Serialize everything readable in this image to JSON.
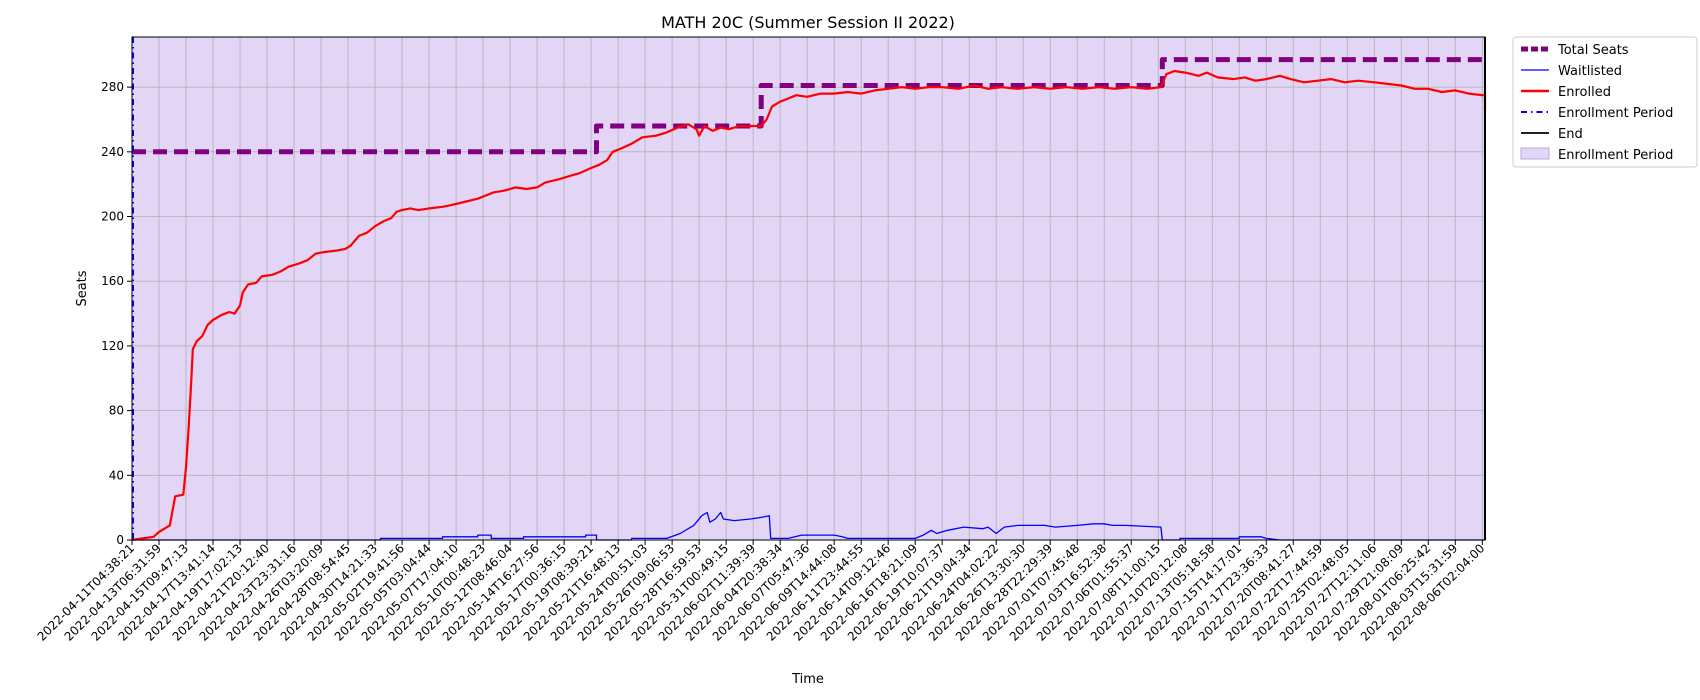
{
  "chart_data": {
    "type": "line",
    "title": "MATH 20C (Summer Session II 2022)",
    "xlabel": "Time",
    "ylabel": "Seats",
    "ylim": [
      0,
      311
    ],
    "y_ticks": [
      0,
      40,
      80,
      120,
      160,
      200,
      240,
      280
    ],
    "x_tick_labels": [
      "2022-04-11T04:38:21",
      "2022-04-13T06:31:59",
      "2022-04-15T09:47:13",
      "2022-04-17T13:41:14",
      "2022-04-19T17:02:13",
      "2022-04-21T20:12:40",
      "2022-04-23T23:31:16",
      "2022-04-26T03:20:09",
      "2022-04-28T08:54:45",
      "2022-04-30T14:21:33",
      "2022-05-02T19:41:56",
      "2022-05-05T03:04:44",
      "2022-05-07T17:04:10",
      "2022-05-10T00:48:23",
      "2022-05-12T08:46:04",
      "2022-05-14T16:27:56",
      "2022-05-17T00:36:15",
      "2022-05-19T08:39:21",
      "2022-05-21T16:48:13",
      "2022-05-24T00:51:03",
      "2022-05-26T09:06:53",
      "2022-05-28T16:59:53",
      "2022-05-31T00:49:15",
      "2022-06-02T11:39:39",
      "2022-06-04T20:38:34",
      "2022-06-07T05:47:36",
      "2022-06-09T14:44:08",
      "2022-06-11T23:44:55",
      "2022-06-14T09:12:46",
      "2022-06-16T18:21:09",
      "2022-06-19T10:07:37",
      "2022-06-21T19:04:34",
      "2022-06-24T04:02:22",
      "2022-06-26T13:30:30",
      "2022-06-28T22:29:39",
      "2022-07-01T07:45:48",
      "2022-07-03T16:52:38",
      "2022-07-06T01:55:37",
      "2022-07-08T11:00:15",
      "2022-07-10T20:12:08",
      "2022-07-13T05:18:58",
      "2022-07-15T14:17:01",
      "2022-07-17T23:36:33",
      "2022-07-20T08:41:27",
      "2022-07-22T17:44:59",
      "2022-07-25T02:48:05",
      "2022-07-27T12:11:06",
      "2022-07-29T21:08:09",
      "2022-08-01T06:25:42",
      "2022-08-03T15:31:59",
      "2022-08-06T02:04:00"
    ],
    "legend_position": "outside-right-top",
    "grid": true,
    "colors": {
      "total_seats": "#800080",
      "waitlisted": "#0000ff",
      "enrolled": "#ff0000",
      "enrollment_period_line": "#0000ff",
      "end_line": "#000000",
      "enrollment_period_fill": "#e2d5f6"
    },
    "series": [
      {
        "name": "Total Seats",
        "style": "dashed",
        "points": [
          [
            0,
            240
          ],
          [
            17.2,
            240
          ],
          [
            17.2,
            256
          ],
          [
            23.3,
            256
          ],
          [
            23.3,
            281
          ],
          [
            38.15,
            281
          ],
          [
            38.15,
            297
          ],
          [
            50.5,
            297
          ]
        ]
      },
      {
        "name": "Waitlisted",
        "style": "solid",
        "points": [
          [
            0,
            0
          ],
          [
            9.2,
            0
          ],
          [
            9.2,
            1
          ],
          [
            11.5,
            1
          ],
          [
            11.5,
            2
          ],
          [
            12.8,
            2
          ],
          [
            12.8,
            3
          ],
          [
            13.3,
            3
          ],
          [
            13.3,
            1
          ],
          [
            14.5,
            1
          ],
          [
            14.5,
            2
          ],
          [
            16.8,
            2
          ],
          [
            16.8,
            3
          ],
          [
            17.2,
            3
          ],
          [
            17.2,
            0
          ],
          [
            18.5,
            0
          ],
          [
            18.5,
            1
          ],
          [
            19.8,
            1
          ],
          [
            20.3,
            4
          ],
          [
            20.8,
            9
          ],
          [
            21.1,
            15
          ],
          [
            21.3,
            17
          ],
          [
            21.4,
            11
          ],
          [
            21.6,
            13
          ],
          [
            21.8,
            17
          ],
          [
            21.9,
            13
          ],
          [
            22.3,
            12
          ],
          [
            22.9,
            13
          ],
          [
            23.3,
            14
          ],
          [
            23.6,
            15
          ],
          [
            23.65,
            1
          ],
          [
            24.3,
            1
          ],
          [
            24.8,
            3
          ],
          [
            26.0,
            3
          ],
          [
            26.3,
            2
          ],
          [
            26.5,
            1
          ],
          [
            27.2,
            1
          ],
          [
            29.0,
            1
          ],
          [
            29.3,
            3
          ],
          [
            29.6,
            6
          ],
          [
            29.8,
            4
          ],
          [
            30.2,
            6
          ],
          [
            30.8,
            8
          ],
          [
            31.5,
            7
          ],
          [
            31.7,
            8
          ],
          [
            32.0,
            4
          ],
          [
            32.3,
            8
          ],
          [
            32.8,
            9
          ],
          [
            33.8,
            9
          ],
          [
            34.2,
            8
          ],
          [
            35.0,
            9
          ],
          [
            35.6,
            10
          ],
          [
            36.0,
            10
          ],
          [
            36.3,
            9
          ],
          [
            36.8,
            9
          ],
          [
            38.1,
            8
          ],
          [
            38.15,
            0
          ],
          [
            38.8,
            0
          ],
          [
            38.8,
            1
          ],
          [
            41.0,
            1
          ],
          [
            41.0,
            2
          ],
          [
            41.8,
            2
          ],
          [
            42.0,
            1
          ],
          [
            42.5,
            0
          ],
          [
            50.5,
            0
          ]
        ]
      },
      {
        "name": "Enrolled",
        "style": "solid",
        "points": [
          [
            0,
            0
          ],
          [
            0.4,
            1
          ],
          [
            0.8,
            2
          ],
          [
            1.0,
            5
          ],
          [
            1.2,
            7
          ],
          [
            1.4,
            9
          ],
          [
            1.5,
            18
          ],
          [
            1.6,
            27
          ],
          [
            1.9,
            28
          ],
          [
            2.0,
            45
          ],
          [
            2.1,
            70
          ],
          [
            2.2,
            100
          ],
          [
            2.25,
            118
          ],
          [
            2.4,
            123
          ],
          [
            2.6,
            126
          ],
          [
            2.8,
            133
          ],
          [
            3.0,
            136
          ],
          [
            3.3,
            139
          ],
          [
            3.6,
            141
          ],
          [
            3.8,
            140
          ],
          [
            4.0,
            145
          ],
          [
            4.1,
            153
          ],
          [
            4.3,
            158
          ],
          [
            4.6,
            159
          ],
          [
            4.8,
            163
          ],
          [
            5.2,
            164
          ],
          [
            5.5,
            166
          ],
          [
            5.8,
            169
          ],
          [
            6.2,
            171
          ],
          [
            6.5,
            173
          ],
          [
            6.8,
            177
          ],
          [
            7.1,
            178
          ],
          [
            7.6,
            179
          ],
          [
            7.9,
            180
          ],
          [
            8.1,
            182
          ],
          [
            8.4,
            188
          ],
          [
            8.7,
            190
          ],
          [
            9.0,
            194
          ],
          [
            9.3,
            197
          ],
          [
            9.6,
            199
          ],
          [
            9.8,
            203
          ],
          [
            10.0,
            204
          ],
          [
            10.3,
            205
          ],
          [
            10.6,
            204
          ],
          [
            11.0,
            205
          ],
          [
            11.5,
            206
          ],
          [
            11.8,
            207
          ],
          [
            12.3,
            209
          ],
          [
            12.8,
            211
          ],
          [
            13.1,
            213
          ],
          [
            13.4,
            215
          ],
          [
            13.8,
            216
          ],
          [
            14.2,
            218
          ],
          [
            14.6,
            217
          ],
          [
            15.0,
            218
          ],
          [
            15.3,
            221
          ],
          [
            15.8,
            223
          ],
          [
            16.2,
            225
          ],
          [
            16.6,
            227
          ],
          [
            17.0,
            230
          ],
          [
            17.3,
            232
          ],
          [
            17.6,
            235
          ],
          [
            17.8,
            240
          ],
          [
            18.1,
            242
          ],
          [
            18.5,
            245
          ],
          [
            18.9,
            249
          ],
          [
            19.4,
            250
          ],
          [
            19.8,
            252
          ],
          [
            20.2,
            255
          ],
          [
            20.6,
            257
          ],
          [
            20.9,
            254
          ],
          [
            21.0,
            250
          ],
          [
            21.2,
            256
          ],
          [
            21.5,
            253
          ],
          [
            21.8,
            255
          ],
          [
            22.1,
            254
          ],
          [
            22.5,
            256
          ],
          [
            22.9,
            256
          ],
          [
            23.3,
            256
          ],
          [
            23.5,
            260
          ],
          [
            23.7,
            268
          ],
          [
            24.0,
            271
          ],
          [
            24.3,
            273
          ],
          [
            24.6,
            275
          ],
          [
            25.0,
            274
          ],
          [
            25.5,
            276
          ],
          [
            26.0,
            276
          ],
          [
            26.5,
            277
          ],
          [
            27.0,
            276
          ],
          [
            27.5,
            278
          ],
          [
            28.0,
            279
          ],
          [
            28.5,
            280
          ],
          [
            29.0,
            279
          ],
          [
            29.5,
            280
          ],
          [
            30.0,
            280
          ],
          [
            30.6,
            279
          ],
          [
            31.2,
            281
          ],
          [
            31.7,
            279
          ],
          [
            32.2,
            280
          ],
          [
            32.8,
            279
          ],
          [
            33.4,
            280
          ],
          [
            34.0,
            279
          ],
          [
            34.6,
            280
          ],
          [
            35.2,
            279
          ],
          [
            35.8,
            280
          ],
          [
            36.4,
            279
          ],
          [
            37.0,
            280
          ],
          [
            37.6,
            279
          ],
          [
            38.1,
            280
          ],
          [
            38.3,
            288
          ],
          [
            38.6,
            290
          ],
          [
            39.0,
            289
          ],
          [
            39.5,
            287
          ],
          [
            39.8,
            289
          ],
          [
            40.2,
            286
          ],
          [
            40.8,
            285
          ],
          [
            41.2,
            286
          ],
          [
            41.6,
            284
          ],
          [
            42.0,
            285
          ],
          [
            42.5,
            287
          ],
          [
            42.9,
            285
          ],
          [
            43.4,
            283
          ],
          [
            43.9,
            284
          ],
          [
            44.4,
            285
          ],
          [
            44.9,
            283
          ],
          [
            45.4,
            284
          ],
          [
            46.0,
            283
          ],
          [
            46.5,
            282
          ],
          [
            47.0,
            281
          ],
          [
            47.5,
            279
          ],
          [
            48.0,
            279
          ],
          [
            48.5,
            277
          ],
          [
            49.0,
            278
          ],
          [
            49.5,
            276
          ],
          [
            50.0,
            275
          ],
          [
            50.5,
            275
          ],
          [
            51.0,
            276
          ],
          [
            51.5,
            277
          ],
          [
            51.9,
            277
          ],
          [
            52.0,
            267
          ],
          [
            52.2,
            266
          ],
          [
            52.5,
            270
          ],
          [
            53.0,
            270
          ],
          [
            53.5,
            271
          ],
          [
            54.0,
            272
          ],
          [
            54.5,
            272
          ],
          [
            55.0,
            273
          ],
          [
            55.5,
            274
          ],
          [
            55.8,
            273
          ],
          [
            56.0,
            275
          ],
          [
            56.4,
            273
          ],
          [
            56.8,
            271
          ],
          [
            57.2,
            268
          ],
          [
            50.5,
            268
          ]
        ]
      },
      {
        "name": "Enrollment Period",
        "style": "dashdot",
        "points": [
          [
            0,
            0
          ],
          [
            0,
            311
          ]
        ]
      },
      {
        "name": "End",
        "style": "solid",
        "points": [
          [
            50.4,
            0
          ],
          [
            50.4,
            311
          ]
        ]
      }
    ],
    "legend": [
      "Total Seats",
      "Waitlisted",
      "Enrolled",
      "Enrollment Period",
      "End",
      "Enrollment Period"
    ]
  }
}
